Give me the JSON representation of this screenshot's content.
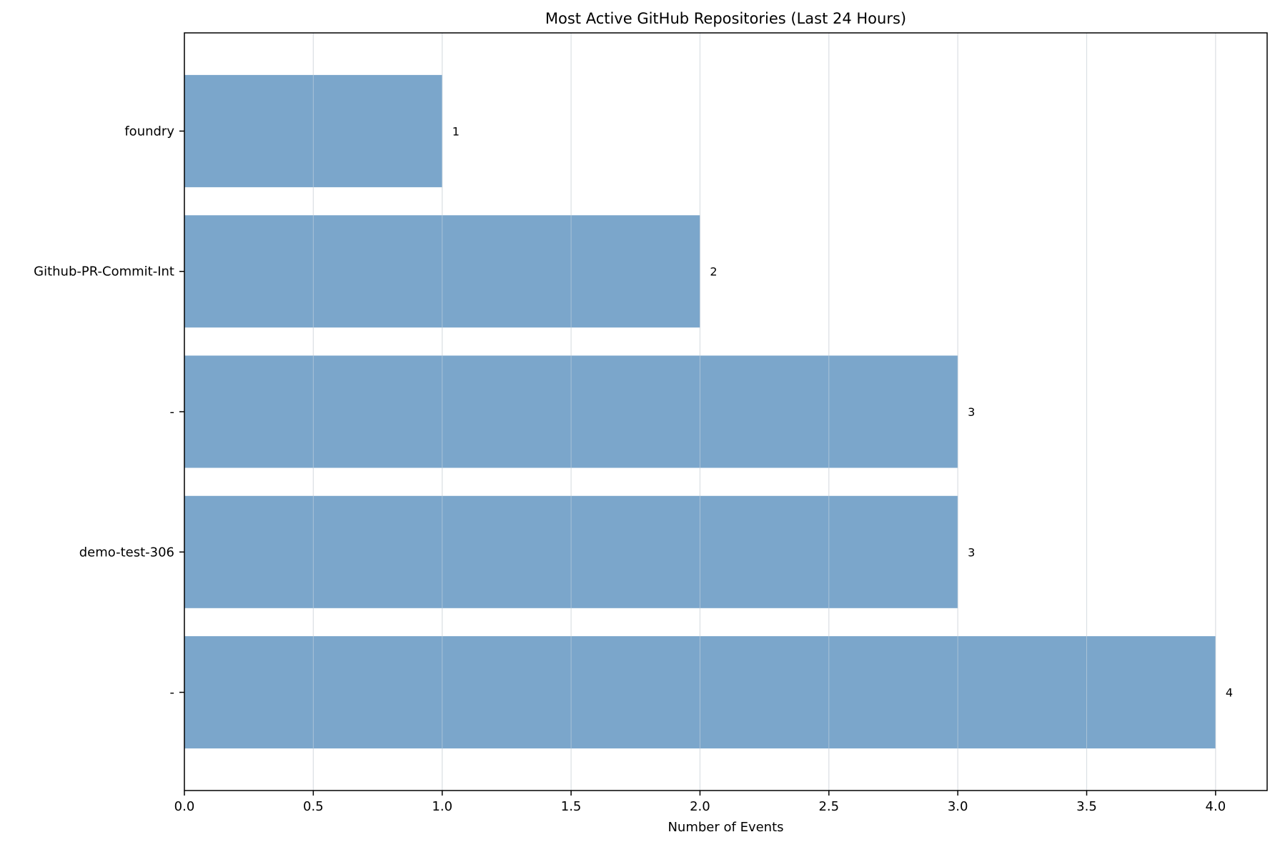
{
  "chart_data": {
    "type": "bar",
    "orientation": "horizontal",
    "title": "Most Active GitHub Repositories (Last 24 Hours)",
    "xlabel": "Number of Events",
    "ylabel": "",
    "categories": [
      "foundry",
      "Github-PR-Commit-Int",
      "-",
      "demo-test-306",
      "-"
    ],
    "values": [
      1,
      2,
      3,
      3,
      4
    ],
    "data_labels": [
      "1",
      "2",
      "3",
      "3",
      "4"
    ],
    "xlim": [
      0,
      4.2
    ],
    "xticks": [
      0.0,
      0.5,
      1.0,
      1.5,
      2.0,
      2.5,
      3.0,
      3.5,
      4.0
    ],
    "xtick_labels": [
      "0.0",
      "0.5",
      "1.0",
      "1.5",
      "2.0",
      "2.5",
      "3.0",
      "3.5",
      "4.0"
    ],
    "grid": "vertical",
    "colors": {
      "bar": "#7ba6cb",
      "grid": "#e6e6e6",
      "axis": "#000000"
    }
  }
}
